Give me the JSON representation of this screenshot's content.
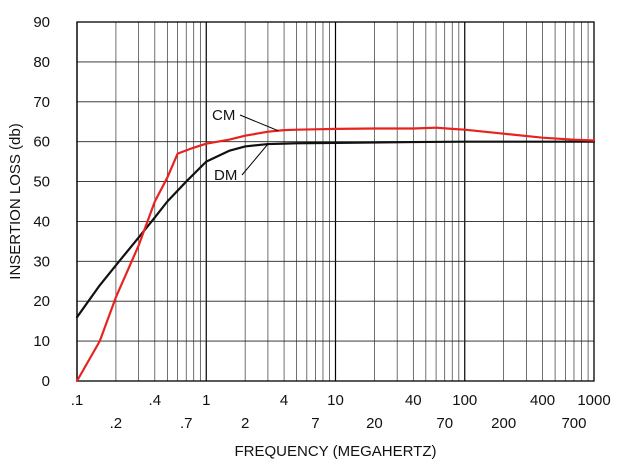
{
  "chart_data": {
    "type": "line",
    "title": "",
    "xlabel": "FREQUENCY (MEGAHERTZ)",
    "ylabel": "INSERTION LOSS (db)",
    "x_scale": "log",
    "xlim": [
      0.1,
      1000
    ],
    "ylim": [
      0,
      90
    ],
    "y_ticks": [
      0,
      10,
      20,
      30,
      40,
      50,
      60,
      70,
      80,
      90
    ],
    "x_tick_labels_upper": [
      {
        "x": 0.1,
        "label": ".1"
      },
      {
        "x": 0.4,
        "label": ".4"
      },
      {
        "x": 1,
        "label": "1"
      },
      {
        "x": 4,
        "label": "4"
      },
      {
        "x": 10,
        "label": "10"
      },
      {
        "x": 40,
        "label": "40"
      },
      {
        "x": 100,
        "label": "100"
      },
      {
        "x": 400,
        "label": "400"
      },
      {
        "x": 1000,
        "label": "1000"
      }
    ],
    "x_tick_labels_lower": [
      {
        "x": 0.2,
        "label": ".2"
      },
      {
        "x": 0.7,
        "label": ".7"
      },
      {
        "x": 2,
        "label": "2"
      },
      {
        "x": 7,
        "label": "7"
      },
      {
        "x": 20,
        "label": "20"
      },
      {
        "x": 70,
        "label": "70"
      },
      {
        "x": 200,
        "label": "200"
      },
      {
        "x": 700,
        "label": "700"
      }
    ],
    "grid": true,
    "series": [
      {
        "name": "CM",
        "color": "#e8231f",
        "x": [
          0.1,
          0.15,
          0.2,
          0.3,
          0.4,
          0.5,
          0.6,
          0.8,
          1,
          1.5,
          2,
          3,
          4,
          5,
          7,
          10,
          20,
          40,
          60,
          80,
          100,
          200,
          400,
          700,
          1000
        ],
        "y": [
          0,
          10,
          21,
          34,
          45,
          51,
          57,
          58.5,
          59.5,
          60.5,
          61.5,
          62.5,
          62.9,
          63,
          63.1,
          63.2,
          63.3,
          63.3,
          63.5,
          63.2,
          63,
          62,
          61,
          60.5,
          60.3
        ]
      },
      {
        "name": "DM",
        "color": "#111111",
        "x": [
          0.1,
          0.15,
          0.2,
          0.3,
          0.4,
          0.5,
          0.7,
          1,
          1.5,
          2,
          3,
          4,
          5,
          10,
          40,
          100,
          1000
        ],
        "y": [
          16,
          24,
          29,
          36,
          41,
          45,
          50,
          55,
          57.7,
          58.8,
          59.4,
          59.5,
          59.6,
          59.7,
          59.9,
          60,
          60
        ]
      }
    ],
    "annotations": [
      {
        "text": "CM",
        "series": "CM",
        "x": 3.6
      },
      {
        "text": "DM",
        "series": "DM",
        "x": 3.0
      }
    ]
  }
}
